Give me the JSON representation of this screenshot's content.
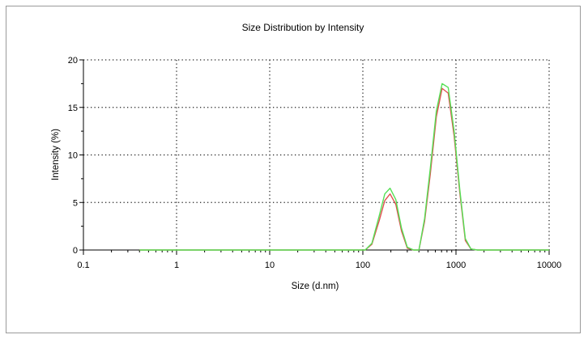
{
  "chart_data": {
    "type": "line",
    "title": "Size Distribution by Intensity",
    "xlabel": "Size (d.nm)",
    "ylabel": "Intensity (%)",
    "x_scale": "log",
    "xlim": [
      0.1,
      10000
    ],
    "ylim": [
      0,
      20
    ],
    "x_ticks": [
      "0.1",
      "1",
      "10",
      "100",
      "1000",
      "10000"
    ],
    "y_ticks": [
      "0",
      "5",
      "10",
      "15",
      "20"
    ],
    "grid": true,
    "legend": "none",
    "series": [
      {
        "color": "#e05050",
        "x": [
          0.4,
          100,
          106,
          125,
          150,
          172,
          196,
          226,
          260,
          300,
          350,
          400,
          460,
          530,
          615,
          710,
          825,
          955,
          1100,
          1260,
          1450,
          1700,
          10000
        ],
        "y": [
          0,
          0,
          0,
          0.6,
          3.1,
          5.2,
          5.9,
          4.8,
          2.0,
          0.2,
          0,
          0,
          3.0,
          8.0,
          14.0,
          17.0,
          16.5,
          12.0,
          6.0,
          1.0,
          0.1,
          0,
          0
        ]
      },
      {
        "color": "#55e055",
        "x": [
          0.4,
          100,
          106,
          125,
          150,
          172,
          196,
          226,
          260,
          300,
          350,
          400,
          460,
          530,
          615,
          710,
          825,
          955,
          1100,
          1260,
          1450,
          1700,
          10000
        ],
        "y": [
          0,
          0,
          0,
          0.7,
          3.6,
          5.9,
          6.5,
          5.3,
          2.3,
          0.3,
          0,
          0,
          3.3,
          8.6,
          14.6,
          17.5,
          17.1,
          12.5,
          6.3,
          1.2,
          0.1,
          0,
          0
        ]
      }
    ]
  }
}
